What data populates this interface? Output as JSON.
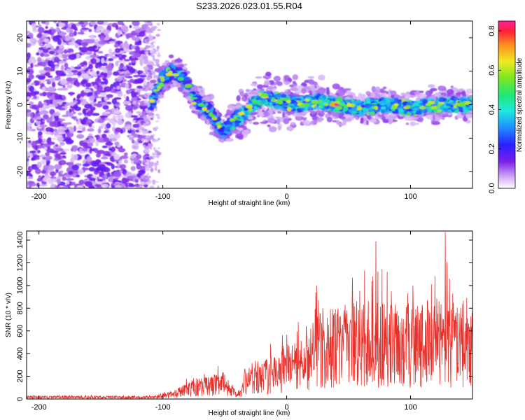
{
  "title": "S233.2026.023.01.55.R04",
  "chart_data": [
    {
      "type": "heatmap",
      "xlabel": "Height of straight line (km)",
      "ylabel": "Frequency (Hz)",
      "xlim": [
        -210,
        150
      ],
      "ylim": [
        -25,
        25
      ],
      "xticks": [
        -200,
        -100,
        0,
        100
      ],
      "yticks": [
        -20,
        -10,
        0,
        10,
        20
      ],
      "colorbar": {
        "label": "Normalized spectral amplitude",
        "range": [
          0,
          0.85
        ],
        "ticks": [
          0.0,
          0.2,
          0.4,
          0.6,
          0.8
        ],
        "tick_labels": [
          "0.0",
          "0.2",
          "0.4",
          "0.6",
          "0.8"
        ]
      },
      "ridge": [
        {
          "x": -110,
          "f": 0
        },
        {
          "x": -100,
          "f": 8
        },
        {
          "x": -92,
          "f": 10
        },
        {
          "x": -83,
          "f": 8
        },
        {
          "x": -75,
          "f": 2
        },
        {
          "x": -60,
          "f": -3
        },
        {
          "x": -52,
          "f": -8
        },
        {
          "x": -40,
          "f": -4
        },
        {
          "x": -30,
          "f": -1
        },
        {
          "x": -20,
          "f": 2
        },
        {
          "x": -5,
          "f": 1
        },
        {
          "x": 10,
          "f": 0
        },
        {
          "x": 25,
          "f": 1
        },
        {
          "x": 40,
          "f": 0
        },
        {
          "x": 60,
          "f": -1
        },
        {
          "x": 80,
          "f": 0
        },
        {
          "x": 100,
          "f": -1
        },
        {
          "x": 120,
          "f": 0
        },
        {
          "x": 140,
          "f": 0
        },
        {
          "x": 150,
          "f": 0
        }
      ],
      "peak": {
        "x": 40,
        "f": 0,
        "amplitude": 0.85
      }
    },
    {
      "type": "line",
      "xlabel": "Height of straight line (km)",
      "ylabel": "SNR (10 * v/v)",
      "xlim": [
        -210,
        150
      ],
      "ylim": [
        0,
        1480
      ],
      "xticks": [
        -200,
        -100,
        0,
        100
      ],
      "yticks": [
        0,
        200,
        400,
        600,
        800,
        1000,
        1200,
        1400
      ],
      "series_color": "#e8302b",
      "envelope": [
        {
          "x": -210,
          "mean": 15,
          "max": 35
        },
        {
          "x": -110,
          "mean": 15,
          "max": 35
        },
        {
          "x": -90,
          "mean": 40,
          "max": 90
        },
        {
          "x": -80,
          "mean": 90,
          "max": 190
        },
        {
          "x": -60,
          "mean": 120,
          "max": 260
        },
        {
          "x": -50,
          "mean": 140,
          "max": 330
        },
        {
          "x": -40,
          "mean": 25,
          "max": 60
        },
        {
          "x": -30,
          "mean": 180,
          "max": 420
        },
        {
          "x": -10,
          "mean": 220,
          "max": 520
        },
        {
          "x": 0,
          "mean": 260,
          "max": 600
        },
        {
          "x": 10,
          "mean": 320,
          "max": 700
        },
        {
          "x": 20,
          "mean": 400,
          "max": 900
        },
        {
          "x": 30,
          "mean": 450,
          "max": 1150
        },
        {
          "x": 40,
          "mean": 460,
          "max": 1000
        },
        {
          "x": 60,
          "mean": 480,
          "max": 1200
        },
        {
          "x": 70,
          "mean": 490,
          "max": 1400
        },
        {
          "x": 90,
          "mean": 470,
          "max": 1100
        },
        {
          "x": 110,
          "mean": 480,
          "max": 1050
        },
        {
          "x": 128,
          "mean": 500,
          "max": 1470
        },
        {
          "x": 140,
          "mean": 460,
          "max": 1100
        },
        {
          "x": 150,
          "mean": 440,
          "max": 1050
        }
      ]
    }
  ]
}
